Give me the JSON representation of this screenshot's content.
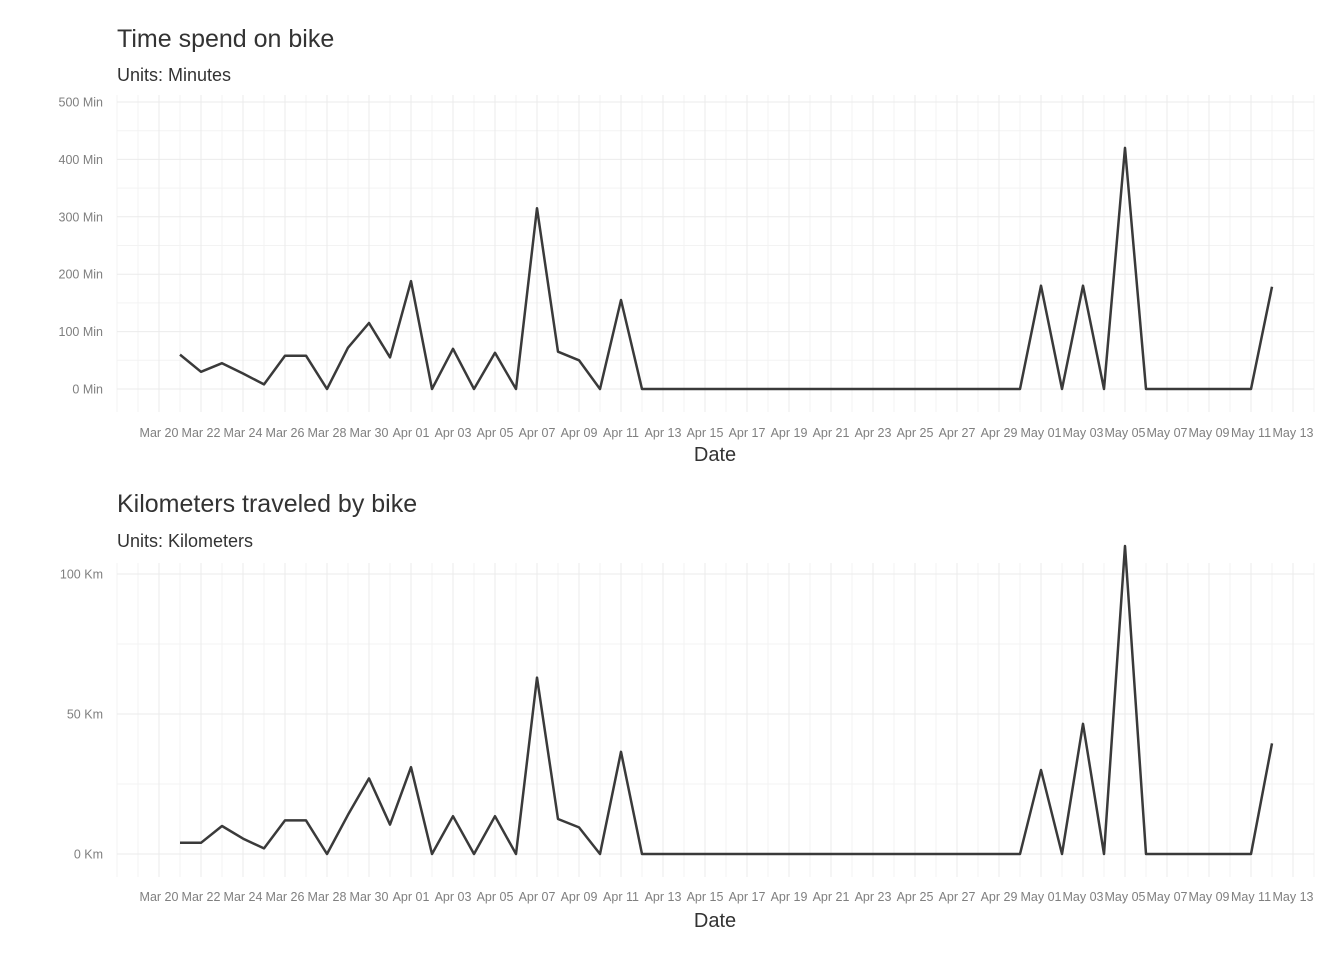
{
  "chart_data": [
    {
      "type": "line",
      "title": "Time spend on bike",
      "subtitle": "Units: Minutes",
      "xlabel": "Date",
      "ylabel": "",
      "ylim": [
        0,
        500
      ],
      "yticks": [
        0,
        100,
        200,
        300,
        400,
        500
      ],
      "ytick_labels": [
        "0 Min",
        "100 Min",
        "200 Min",
        "300 Min",
        "400 Min",
        "500 Min"
      ],
      "xlim": [
        "2020-03-18",
        "2020-05-14"
      ],
      "xticks": [
        "2020-03-20",
        "2020-03-22",
        "2020-03-24",
        "2020-03-26",
        "2020-03-28",
        "2020-03-30",
        "2020-04-01",
        "2020-04-03",
        "2020-04-05",
        "2020-04-07",
        "2020-04-09",
        "2020-04-11",
        "2020-04-13",
        "2020-04-15",
        "2020-04-17",
        "2020-04-19",
        "2020-04-21",
        "2020-04-23",
        "2020-04-25",
        "2020-04-27",
        "2020-04-29",
        "2020-05-01",
        "2020-05-03",
        "2020-05-05",
        "2020-05-07",
        "2020-05-09",
        "2020-05-11",
        "2020-05-13"
      ],
      "xtick_labels": [
        "Mar 20",
        "Mar 22",
        "Mar 24",
        "Mar 26",
        "Mar 28",
        "Mar 30",
        "Apr 01",
        "Apr 03",
        "Apr 05",
        "Apr 07",
        "Apr 09",
        "Apr 11",
        "Apr 13",
        "Apr 15",
        "Apr 17",
        "Apr 19",
        "Apr 21",
        "Apr 23",
        "Apr 25",
        "Apr 27",
        "Apr 29",
        "May 01",
        "May 03",
        "May 05",
        "May 07",
        "May 09",
        "May 11",
        "May 13"
      ],
      "grid": true,
      "series": [
        {
          "x": [
            "2020-03-21",
            "2020-03-22",
            "2020-03-23",
            "2020-03-24",
            "2020-03-25",
            "2020-03-26",
            "2020-03-27",
            "2020-03-28",
            "2020-03-29",
            "2020-03-30",
            "2020-03-31",
            "2020-04-01",
            "2020-04-02",
            "2020-04-03",
            "2020-04-04",
            "2020-04-05",
            "2020-04-06",
            "2020-04-07",
            "2020-04-08",
            "2020-04-09",
            "2020-04-10",
            "2020-04-11",
            "2020-04-12",
            "2020-04-30",
            "2020-05-01",
            "2020-05-02",
            "2020-05-03",
            "2020-05-04",
            "2020-05-05",
            "2020-05-06",
            "2020-05-11",
            "2020-05-12"
          ],
          "values": [
            60,
            30,
            45,
            27,
            8,
            58,
            58,
            0,
            72,
            115,
            55,
            188,
            0,
            70,
            0,
            63,
            0,
            315,
            65,
            50,
            0,
            155,
            0,
            0,
            180,
            0,
            180,
            0,
            420,
            0,
            0,
            178
          ]
        }
      ]
    },
    {
      "type": "line",
      "title": "Kilometers traveled by bike",
      "subtitle": "Units: Kilometers",
      "xlabel": "Date",
      "ylabel": "",
      "ylim": [
        -3,
        130
      ],
      "yticks": [
        0,
        50,
        100
      ],
      "ytick_labels": [
        "0 Km",
        "50 Km",
        "100 Km"
      ],
      "xlim": [
        "2020-03-18",
        "2020-05-14"
      ],
      "xticks": [
        "2020-03-20",
        "2020-03-22",
        "2020-03-24",
        "2020-03-26",
        "2020-03-28",
        "2020-03-30",
        "2020-04-01",
        "2020-04-03",
        "2020-04-05",
        "2020-04-07",
        "2020-04-09",
        "2020-04-11",
        "2020-04-13",
        "2020-04-15",
        "2020-04-17",
        "2020-04-19",
        "2020-04-21",
        "2020-04-23",
        "2020-04-25",
        "2020-04-27",
        "2020-04-29",
        "2020-05-01",
        "2020-05-03",
        "2020-05-05",
        "2020-05-07",
        "2020-05-09",
        "2020-05-11",
        "2020-05-13"
      ],
      "xtick_labels": [
        "Mar 20",
        "Mar 22",
        "Mar 24",
        "Mar 26",
        "Mar 28",
        "Mar 30",
        "Apr 01",
        "Apr 03",
        "Apr 05",
        "Apr 07",
        "Apr 09",
        "Apr 11",
        "Apr 13",
        "Apr 15",
        "Apr 17",
        "Apr 19",
        "Apr 21",
        "Apr 23",
        "Apr 25",
        "Apr 27",
        "Apr 29",
        "May 01",
        "May 03",
        "May 05",
        "May 07",
        "May 09",
        "May 11",
        "May 13"
      ],
      "grid": true,
      "series": [
        {
          "x": [
            "2020-03-21",
            "2020-03-22",
            "2020-03-23",
            "2020-03-24",
            "2020-03-25",
            "2020-03-26",
            "2020-03-27",
            "2020-03-28",
            "2020-03-29",
            "2020-03-30",
            "2020-03-31",
            "2020-04-01",
            "2020-04-02",
            "2020-04-03",
            "2020-04-04",
            "2020-04-05",
            "2020-04-06",
            "2020-04-07",
            "2020-04-08",
            "2020-04-09",
            "2020-04-10",
            "2020-04-11",
            "2020-04-12",
            "2020-04-30",
            "2020-05-01",
            "2020-05-02",
            "2020-05-03",
            "2020-05-04",
            "2020-05-05",
            "2020-05-06",
            "2020-05-11",
            "2020-05-12"
          ],
          "values": [
            4,
            4,
            10,
            5.5,
            2,
            12,
            12,
            0,
            14,
            27,
            10.5,
            31,
            0,
            13.5,
            0,
            13.5,
            0,
            63,
            12.5,
            9.5,
            0,
            36.5,
            0,
            0,
            30,
            0,
            46.5,
            0,
            110,
            0,
            0,
            39.5
          ]
        }
      ]
    }
  ],
  "colors": {
    "line": "#3a3a3a",
    "grid": "#ebebeb",
    "tick_text": "#7f7f7f",
    "title_text": "#333333"
  }
}
